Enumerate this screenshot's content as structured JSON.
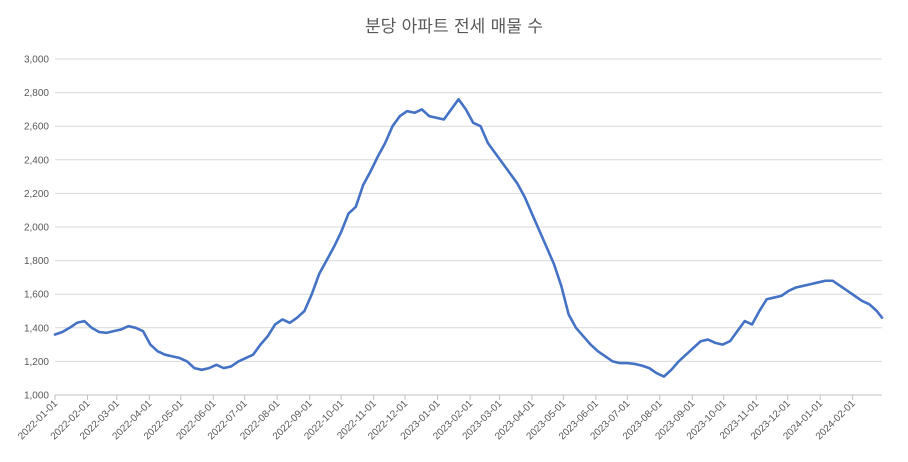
{
  "chart_data": {
    "type": "line",
    "title": "분당 아파트 전세 매물 수",
    "xlabel": "",
    "ylabel": "",
    "ylim": [
      1000,
      3000
    ],
    "yticks": [
      "1,000",
      "1,200",
      "1,400",
      "1,600",
      "1,800",
      "2,000",
      "2,200",
      "2,400",
      "2,600",
      "2,800",
      "3,000"
    ],
    "ytick_values": [
      1000,
      1200,
      1400,
      1600,
      1800,
      2000,
      2200,
      2400,
      2600,
      2800,
      3000
    ],
    "xticks": [
      "2022-01-01",
      "2022-02-01",
      "2022-03-01",
      "2022-04-01",
      "2022-05-01",
      "2022-06-01",
      "2022-07-01",
      "2022-08-01",
      "2022-09-01",
      "2022-10-01",
      "2022-11-01",
      "2022-12-01",
      "2023-01-01",
      "2023-02-01",
      "2023-03-01",
      "2023-04-01",
      "2023-05-01",
      "2023-06-01",
      "2023-07-01",
      "2023-08-01",
      "2023-09-01",
      "2023-10-01",
      "2023-11-01",
      "2023-12-01",
      "2024-01-01",
      "2024-02-01"
    ],
    "xlim": [
      "2022-01-01",
      "2024-02-29"
    ],
    "grid": true,
    "legend": "none",
    "series_color": "#4472c4",
    "x": [
      "2022-01-01",
      "2022-01-08",
      "2022-01-15",
      "2022-01-22",
      "2022-01-29",
      "2022-02-05",
      "2022-02-12",
      "2022-02-19",
      "2022-02-26",
      "2022-03-05",
      "2022-03-12",
      "2022-03-19",
      "2022-03-26",
      "2022-04-02",
      "2022-04-09",
      "2022-04-16",
      "2022-04-23",
      "2022-04-30",
      "2022-05-07",
      "2022-05-14",
      "2022-05-21",
      "2022-05-28",
      "2022-06-04",
      "2022-06-11",
      "2022-06-18",
      "2022-06-25",
      "2022-07-02",
      "2022-07-09",
      "2022-07-16",
      "2022-07-23",
      "2022-07-30",
      "2022-08-06",
      "2022-08-13",
      "2022-08-20",
      "2022-08-27",
      "2022-09-03",
      "2022-09-10",
      "2022-09-17",
      "2022-09-24",
      "2022-10-01",
      "2022-10-08",
      "2022-10-15",
      "2022-10-22",
      "2022-10-29",
      "2022-11-05",
      "2022-11-12",
      "2022-11-19",
      "2022-11-26",
      "2022-12-03",
      "2022-12-10",
      "2022-12-17",
      "2022-12-24",
      "2022-12-31",
      "2023-01-07",
      "2023-01-14",
      "2023-01-21",
      "2023-01-28",
      "2023-02-04",
      "2023-02-11",
      "2023-02-18",
      "2023-02-25",
      "2023-03-04",
      "2023-03-11",
      "2023-03-18",
      "2023-03-25",
      "2023-04-01",
      "2023-04-08",
      "2023-04-15",
      "2023-04-22",
      "2023-04-29",
      "2023-05-06",
      "2023-05-13",
      "2023-05-20",
      "2023-05-27",
      "2023-06-03",
      "2023-06-10",
      "2023-06-17",
      "2023-06-24",
      "2023-07-01",
      "2023-07-08",
      "2023-07-15",
      "2023-07-22",
      "2023-07-29",
      "2023-08-05",
      "2023-08-12",
      "2023-08-19",
      "2023-08-26",
      "2023-09-02",
      "2023-09-09",
      "2023-09-16",
      "2023-09-23",
      "2023-09-30",
      "2023-10-07",
      "2023-10-14",
      "2023-10-21",
      "2023-10-28",
      "2023-11-04",
      "2023-11-11",
      "2023-11-18",
      "2023-11-25",
      "2023-12-02",
      "2023-12-09",
      "2023-12-16",
      "2023-12-23",
      "2023-12-30",
      "2024-01-06",
      "2024-01-13",
      "2024-01-20",
      "2024-01-27",
      "2024-02-03",
      "2024-02-10",
      "2024-02-17",
      "2024-02-24",
      "2024-02-29"
    ],
    "values": [
      1360,
      1375,
      1400,
      1430,
      1440,
      1400,
      1375,
      1370,
      1380,
      1390,
      1410,
      1400,
      1380,
      1300,
      1260,
      1240,
      1230,
      1220,
      1200,
      1160,
      1150,
      1160,
      1180,
      1160,
      1170,
      1200,
      1220,
      1240,
      1300,
      1350,
      1420,
      1450,
      1430,
      1460,
      1500,
      1600,
      1720,
      1800,
      1880,
      1970,
      2080,
      2120,
      2250,
      2330,
      2420,
      2500,
      2600,
      2660,
      2690,
      2680,
      2700,
      2660,
      2650,
      2640,
      2700,
      2760,
      2700,
      2620,
      2600,
      2500,
      2440,
      2380,
      2320,
      2260,
      2180,
      2080,
      1980,
      1880,
      1780,
      1650,
      1480,
      1400,
      1350,
      1300,
      1260,
      1230,
      1200,
      1190,
      1190,
      1185,
      1175,
      1160,
      1130,
      1110,
      1150,
      1200,
      1240,
      1280,
      1320,
      1330,
      1310,
      1300,
      1320,
      1380,
      1440,
      1420,
      1500,
      1570,
      1580,
      1590,
      1620,
      1640,
      1650,
      1660,
      1670,
      1680,
      1680,
      1650,
      1620,
      1590,
      1560,
      1540,
      1500,
      1460
    ]
  }
}
